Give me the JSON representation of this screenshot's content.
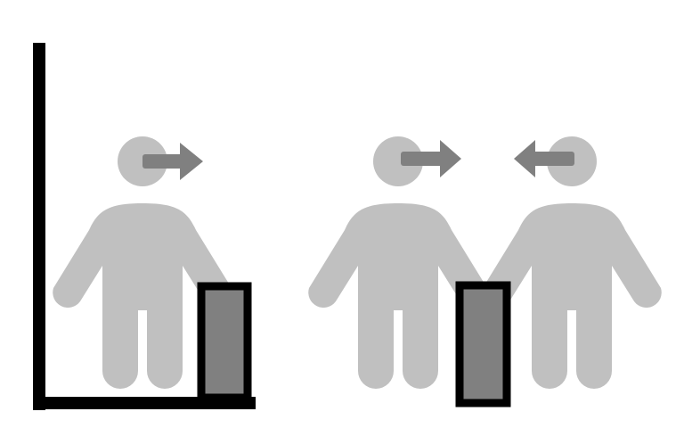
{
  "colors": {
    "background": "#ffffff",
    "person": "#c0c0c0",
    "arrow": "#808080",
    "object_fill": "#808080",
    "outline": "#000000"
  },
  "panels": [
    {
      "id": "left",
      "has_corner_frame": true,
      "people": [
        {
          "id": "person-1",
          "facing": "right",
          "arrow_icon": "arrow-right-icon"
        }
      ],
      "object_icon": "rectangle-block-icon"
    },
    {
      "id": "right",
      "has_corner_frame": false,
      "people": [
        {
          "id": "person-2",
          "facing": "right",
          "arrow_icon": "arrow-right-icon"
        },
        {
          "id": "person-3",
          "facing": "left",
          "arrow_icon": "arrow-left-icon"
        }
      ],
      "object_icon": "rectangle-block-icon"
    }
  ]
}
